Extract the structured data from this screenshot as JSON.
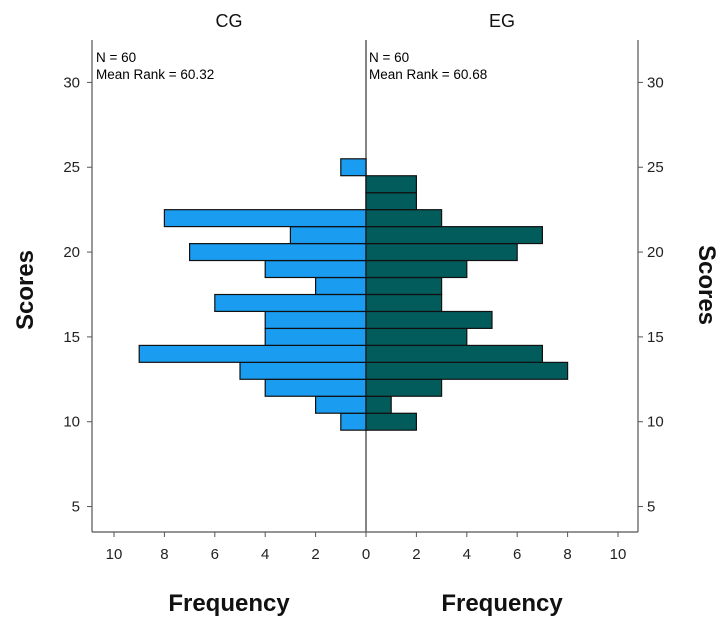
{
  "chart_data": {
    "type": "bar",
    "orientation": "horizontal-back-to-back",
    "panels": [
      {
        "name": "CG",
        "title": "CG",
        "n_label": "N = 60",
        "mean_rank_label": "Mean Rank = 60.32",
        "color": "#1a9cf0"
      },
      {
        "name": "EG",
        "title": "EG",
        "n_label": "N = 60",
        "mean_rank_label": "Mean Rank = 60.68",
        "color": "#035c5c"
      }
    ],
    "categories": [
      10,
      11,
      12,
      13,
      14,
      15,
      16,
      17,
      18,
      19,
      20,
      21,
      22,
      23,
      24,
      25
    ],
    "series": [
      {
        "name": "CG",
        "values": [
          1,
          2,
          4,
          5,
          9,
          4,
          4,
          6,
          2,
          4,
          7,
          3,
          8,
          0,
          0,
          1
        ]
      },
      {
        "name": "EG",
        "values": [
          2,
          1,
          3,
          8,
          7,
          4,
          5,
          3,
          3,
          4,
          6,
          7,
          3,
          2,
          2,
          0
        ]
      }
    ],
    "ylabel": "Scores",
    "xlabel": "Frequency",
    "ylim": [
      3.5,
      32.5
    ],
    "yticks": [
      "5",
      "10",
      "15",
      "20",
      "25",
      "30"
    ],
    "xlim": [
      0,
      10
    ],
    "xticks": [
      "10",
      "8",
      "6",
      "4",
      "2",
      "0",
      "2",
      "4",
      "6",
      "8",
      "10"
    ],
    "grid": false
  }
}
